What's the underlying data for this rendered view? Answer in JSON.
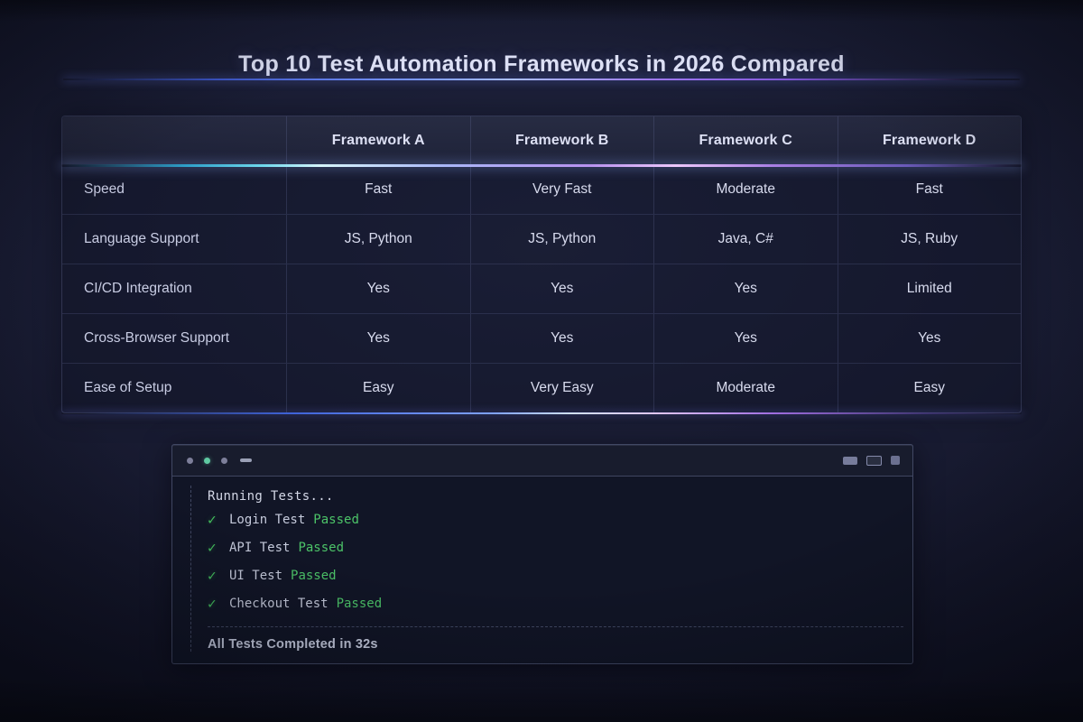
{
  "title": "Top 10 Test Automation Frameworks in 2026 Compared",
  "comparison_table": {
    "corner_label": "",
    "columns": [
      "Framework A",
      "Framework B",
      "Framework C",
      "Framework D"
    ],
    "rows": [
      {
        "label": "Speed",
        "values": [
          "Fast",
          "Very Fast",
          "Moderate",
          "Fast"
        ]
      },
      {
        "label": "Language Support",
        "values": [
          "JS, Python",
          "JS, Python",
          "Java, C#",
          "JS, Ruby"
        ]
      },
      {
        "label": "CI/CD Integration",
        "values": [
          "Yes",
          "Yes",
          "Yes",
          "Limited"
        ]
      },
      {
        "label": "Cross-Browser Support",
        "values": [
          "Yes",
          "Yes",
          "Yes",
          "Yes"
        ]
      },
      {
        "label": "Ease of Setup",
        "values": [
          "Easy",
          "Very Easy",
          "Moderate",
          "Easy"
        ]
      }
    ]
  },
  "terminal": {
    "status_line": "Running Tests...",
    "check_icon": "✓",
    "tests": [
      {
        "name": "Login Test",
        "status": "Passed"
      },
      {
        "name": "API Test",
        "status": "Passed"
      },
      {
        "name": "UI Test",
        "status": "Passed"
      },
      {
        "name": "Checkout Test",
        "status": "Passed"
      }
    ],
    "summary": "All Tests Completed in 32s"
  },
  "colors": {
    "accent_blue": "#7e9bff",
    "accent_cyan": "#6fd8ec",
    "accent_purple": "#9e78f2",
    "accent_pink": "#e0c6f8",
    "pass_green": "#4cc368",
    "teal_dot": "#5fc9a2",
    "text_light": "#dde0f5"
  }
}
